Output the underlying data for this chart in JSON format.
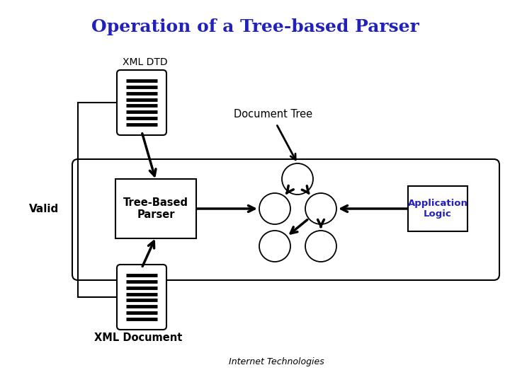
{
  "title": "Operation of a Tree-based Parser",
  "title_color": "#2222bb",
  "title_fontsize": 18,
  "background_color": "#ffffff",
  "labels": {
    "xml_dtd": "XML DTD",
    "document_tree": "Document Tree",
    "valid": "Valid",
    "tree_based_parser": "Tree-Based\nParser",
    "application_logic": "Application\nLogic",
    "xml_document": "XML Document",
    "footer": "Internet Technologies"
  },
  "colors": {
    "black": "#000000",
    "blue": "#2222bb",
    "white": "#ffffff"
  }
}
